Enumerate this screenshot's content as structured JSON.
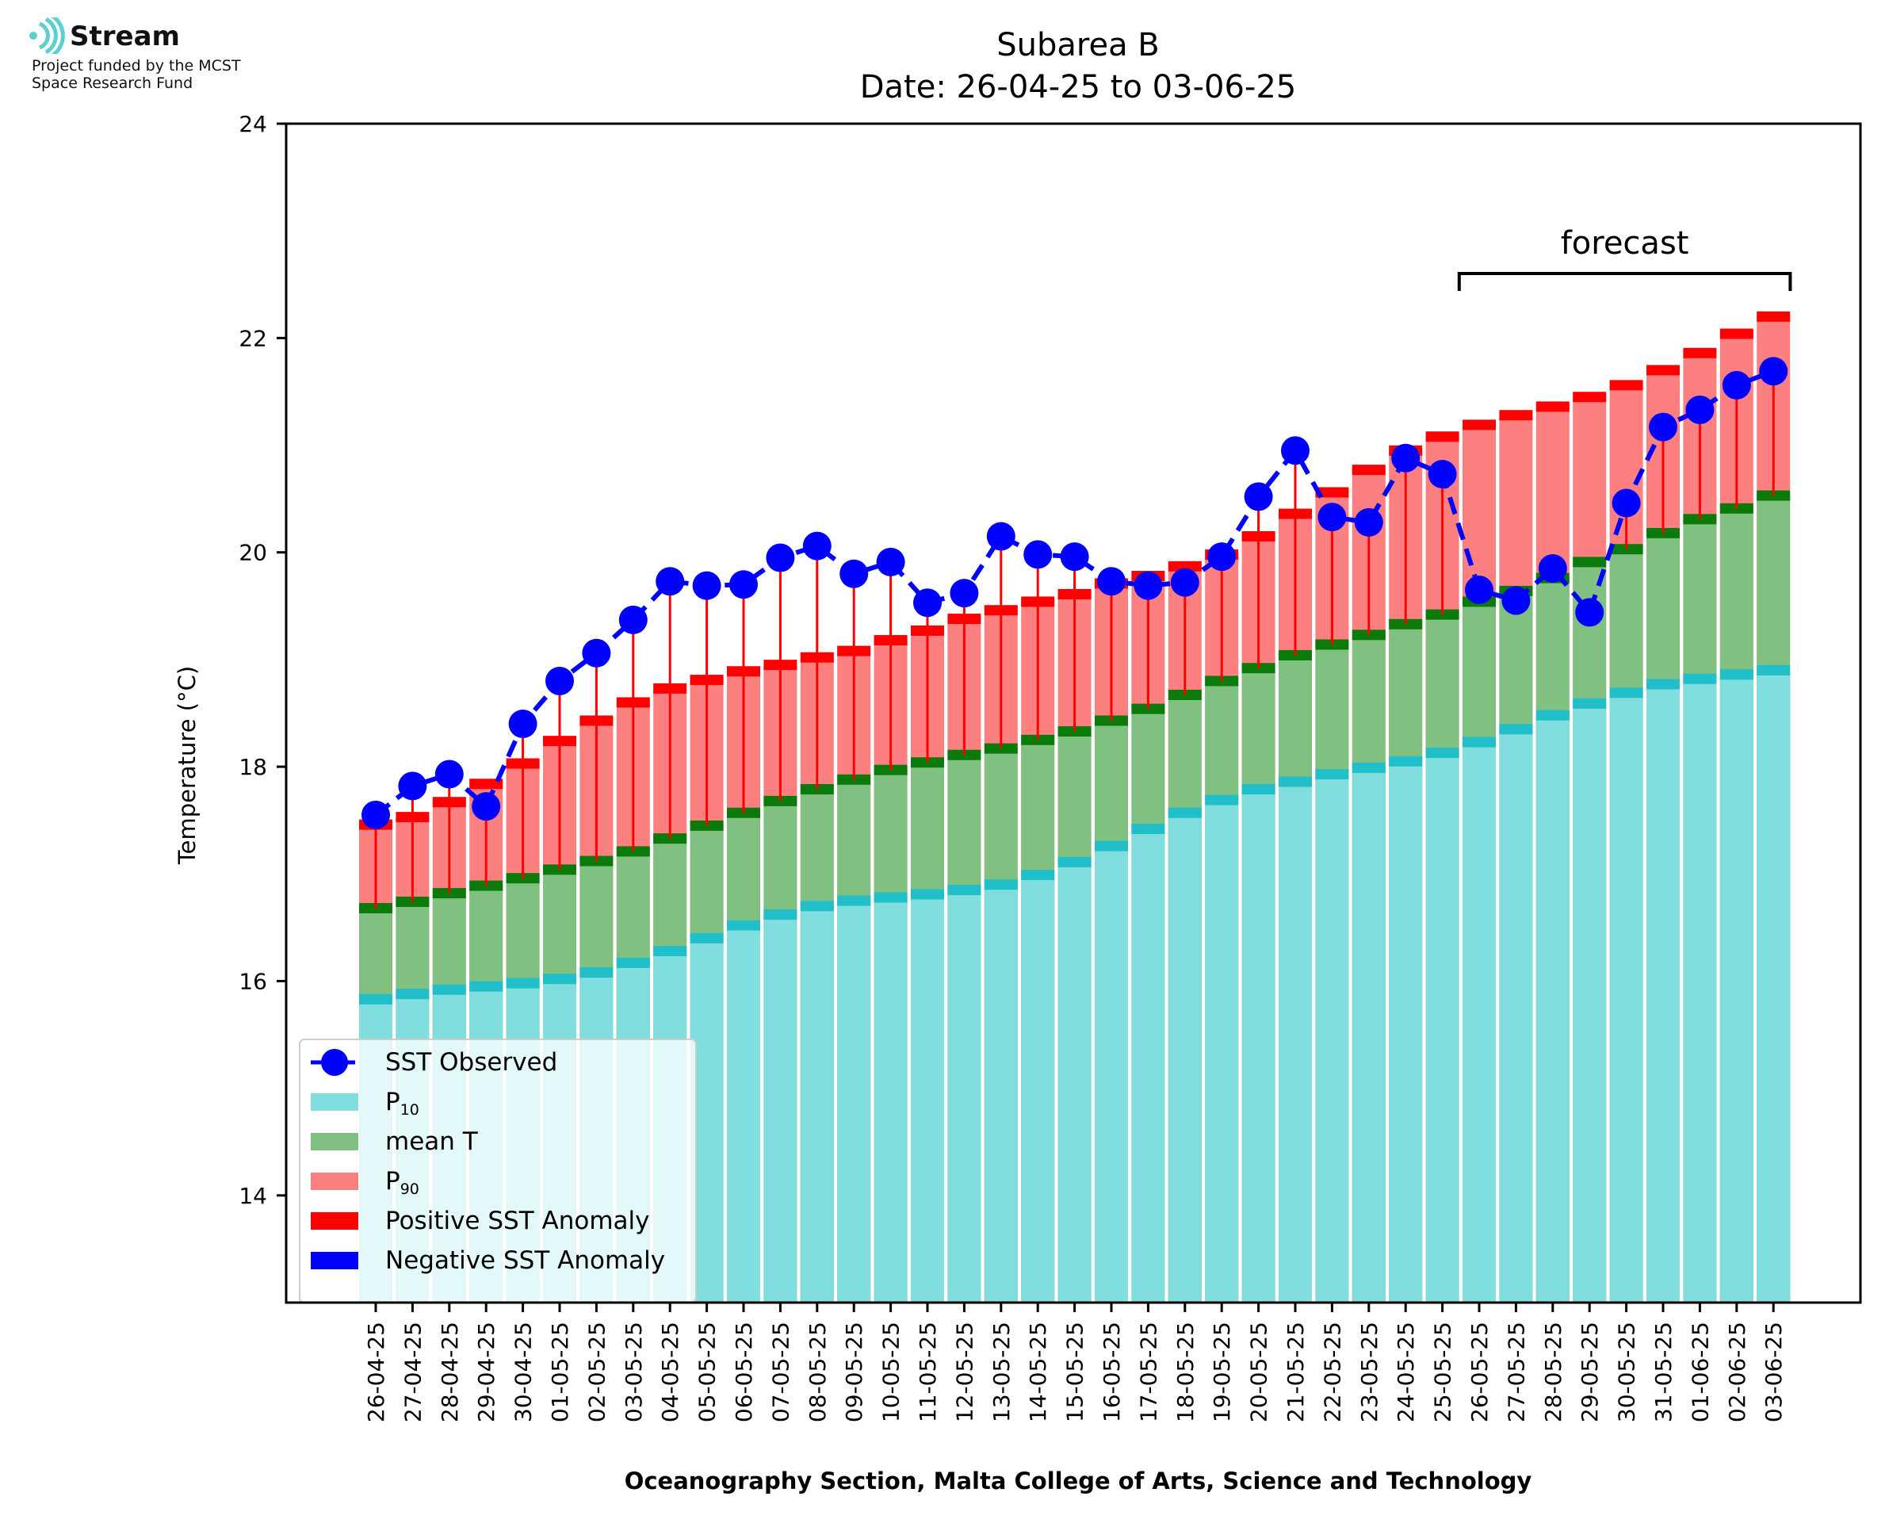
{
  "logo": {
    "name": "Stream",
    "line1": "Project funded by the MCST",
    "line2": "Space Research Fund",
    "color": "#5ecfcf"
  },
  "chart_data": {
    "type": "bar",
    "title": "Subarea B",
    "subtitle": "Date: 26-04-25 to 03-06-25",
    "xlabel": "Oceanography Section, Malta College of Arts, Science and Technology",
    "ylabel": "Temperature (°C)",
    "ylim": [
      13,
      24
    ],
    "yticks": [
      14,
      16,
      18,
      20,
      22,
      24
    ],
    "grid": false,
    "legend_position": "lower-left",
    "categories": [
      "26-04-25",
      "27-04-25",
      "28-04-25",
      "29-04-25",
      "30-04-25",
      "01-05-25",
      "02-05-25",
      "03-05-25",
      "04-05-25",
      "05-05-25",
      "06-05-25",
      "07-05-25",
      "08-05-25",
      "09-05-25",
      "10-05-25",
      "11-05-25",
      "12-05-25",
      "13-05-25",
      "14-05-25",
      "15-05-25",
      "16-05-25",
      "17-05-25",
      "18-05-25",
      "19-05-25",
      "20-05-25",
      "21-05-25",
      "22-05-25",
      "23-05-25",
      "24-05-25",
      "25-05-25",
      "26-05-25",
      "27-05-25",
      "28-05-25",
      "29-05-25",
      "30-05-25",
      "31-05-25",
      "01-06-25",
      "02-06-25",
      "03-06-25"
    ],
    "series": [
      {
        "name": "P10",
        "color": "#80dede",
        "edge_color": "#20bfca",
        "values": [
          15.83,
          15.88,
          15.92,
          15.95,
          15.98,
          16.02,
          16.08,
          16.17,
          16.28,
          16.4,
          16.52,
          16.62,
          16.7,
          16.75,
          16.78,
          16.81,
          16.85,
          16.9,
          16.99,
          17.11,
          17.26,
          17.42,
          17.57,
          17.69,
          17.79,
          17.86,
          17.93,
          17.99,
          18.05,
          18.13,
          18.23,
          18.35,
          18.48,
          18.59,
          18.69,
          18.77,
          18.82,
          18.86,
          18.9
        ]
      },
      {
        "name": "mean T",
        "color": "#80c080",
        "edge_color": "#0a7a0a",
        "values": [
          16.68,
          16.74,
          16.82,
          16.89,
          16.96,
          17.04,
          17.12,
          17.21,
          17.33,
          17.45,
          17.57,
          17.68,
          17.79,
          17.88,
          17.97,
          18.04,
          18.11,
          18.17,
          18.25,
          18.33,
          18.43,
          18.54,
          18.67,
          18.8,
          18.92,
          19.04,
          19.14,
          19.23,
          19.33,
          19.42,
          19.54,
          19.64,
          19.76,
          19.91,
          20.03,
          20.18,
          20.31,
          20.41,
          20.53
        ]
      },
      {
        "name": "P90",
        "color": "#fc8080",
        "edge_color": "#ff0000",
        "values": [
          17.46,
          17.53,
          17.67,
          17.84,
          18.03,
          18.24,
          18.43,
          18.6,
          18.73,
          18.81,
          18.89,
          18.95,
          19.02,
          19.08,
          19.18,
          19.27,
          19.38,
          19.46,
          19.54,
          19.61,
          19.71,
          19.78,
          19.87,
          19.98,
          20.15,
          20.36,
          20.56,
          20.77,
          20.95,
          21.08,
          21.19,
          21.28,
          21.36,
          21.45,
          21.56,
          21.7,
          21.86,
          22.04,
          22.2
        ]
      },
      {
        "name": "SST Observed",
        "color": "#0000ff",
        "style": "dashed-line-with-markers",
        "values": [
          17.55,
          17.82,
          17.93,
          17.63,
          18.4,
          18.8,
          19.06,
          19.37,
          19.73,
          19.69,
          19.7,
          19.95,
          20.06,
          19.8,
          19.91,
          19.53,
          19.62,
          20.15,
          19.98,
          19.96,
          19.73,
          19.69,
          19.72,
          19.96,
          20.52,
          20.95,
          20.33,
          20.28,
          20.88,
          20.73,
          19.65,
          19.55,
          19.85,
          19.44,
          20.46,
          21.17,
          21.33,
          21.56,
          21.69
        ]
      }
    ],
    "anomaly": {
      "positive_color": "#ff0000",
      "negative_color": "#0000ff"
    },
    "forecast": {
      "label": "forecast",
      "start": "26-05-25",
      "end": "03-06-25"
    },
    "legend": [
      {
        "label": "SST Observed",
        "kind": "line-marker",
        "color": "#0000ff"
      },
      {
        "label": "P",
        "sub": "10",
        "kind": "patch",
        "color": "#80dede"
      },
      {
        "label": "mean T",
        "kind": "patch",
        "color": "#80c080"
      },
      {
        "label": "P",
        "sub": "90",
        "kind": "patch",
        "color": "#fc8080"
      },
      {
        "label": "Positive SST Anomaly",
        "kind": "patch",
        "color": "#ff0000"
      },
      {
        "label": "Negative SST Anomaly",
        "kind": "patch",
        "color": "#0000ff"
      }
    ]
  }
}
